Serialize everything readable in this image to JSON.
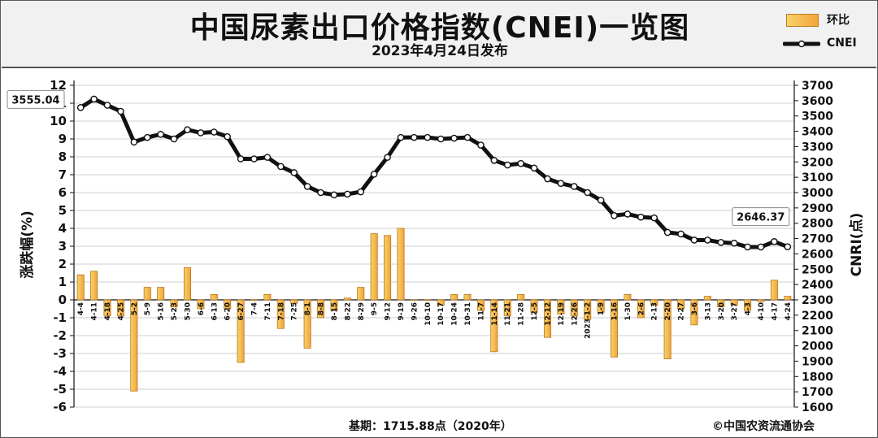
{
  "header": {
    "title": "中国尿素出口价格指数(CNEI)一览图",
    "subtitle": "2023年4月24日发布"
  },
  "legend": {
    "bar_label": "环比",
    "line_label": "CNEI"
  },
  "footer": {
    "base": "基期：1715.88点（2020年）",
    "copyright": "©中国农资流通协会"
  },
  "colors": {
    "bar_fill_light": "#f7d46a",
    "bar_fill_dark": "#f2a33a",
    "bar_stroke": "#b8741c",
    "line": "#111111",
    "marker_fill": "#ffffff",
    "grid": "#cfcfcf",
    "plot_bg": "#ffffff"
  },
  "chart_data": {
    "type": "bar+line",
    "categories": [
      "4-4",
      "4-11",
      "4-18",
      "4-25",
      "5-2",
      "5-9",
      "5-16",
      "5-23",
      "5-30",
      "6-6",
      "6-13",
      "6-20",
      "6-27",
      "7-4",
      "7-11",
      "7-18",
      "7-25",
      "8-1",
      "8-8",
      "8-15",
      "8-22",
      "8-29",
      "9-5",
      "9-12",
      "9-19",
      "9-26",
      "10-10",
      "10-17",
      "10-24",
      "10-31",
      "11-7",
      "11-14",
      "11-21",
      "11-28",
      "12-5",
      "12-12",
      "12-19",
      "12-26",
      "2023-1-2",
      "1-9",
      "1-16",
      "1-30",
      "2-6",
      "2-13",
      "2-20",
      "2-27",
      "3-6",
      "3-13",
      "3-20",
      "3-27",
      "4-3",
      "4-10",
      "4-17",
      "4-24"
    ],
    "series": [
      {
        "name": "环比",
        "type": "bar",
        "axis": "left",
        "values": [
          1.4,
          1.6,
          -0.9,
          -0.9,
          -5.1,
          0.7,
          0.7,
          -0.4,
          1.8,
          -0.5,
          0.3,
          -0.5,
          -3.5,
          0.0,
          0.3,
          -1.6,
          -0.2,
          -2.7,
          -1.0,
          -0.6,
          0.1,
          0.7,
          3.7,
          3.6,
          4.0,
          0.0,
          0.0,
          -0.3,
          0.3,
          0.3,
          -0.6,
          -2.9,
          -0.9,
          0.3,
          -0.7,
          -2.1,
          -0.8,
          -0.9,
          -1.1,
          -0.7,
          -3.2,
          0.3,
          -1.0,
          -0.3,
          -3.3,
          -0.5,
          -1.4,
          0.2,
          -0.4,
          -0.3,
          -0.6,
          -0.1,
          1.1,
          0.2
        ]
      },
      {
        "name": "CNEI",
        "type": "line",
        "axis": "right",
        "values": [
          3555.04,
          3610,
          3570,
          3530,
          3330,
          3360,
          3380,
          3350,
          3410,
          3390,
          3395,
          3365,
          3220,
          3220,
          3230,
          3170,
          3130,
          3040,
          3000,
          2985,
          2990,
          3005,
          3120,
          3230,
          3360,
          3360,
          3360,
          3350,
          3355,
          3360,
          3310,
          3210,
          3180,
          3190,
          3160,
          3090,
          3060,
          3040,
          3000,
          2950,
          2850,
          2860,
          2840,
          2835,
          2740,
          2730,
          2690,
          2690,
          2675,
          2670,
          2645,
          2645,
          2680,
          2646.37
        ]
      }
    ],
    "y_left": {
      "label": "涨跌幅(%)",
      "min": -6,
      "max": 12,
      "ticks": [
        12,
        11,
        10,
        9,
        8,
        7,
        6,
        5,
        4,
        3,
        2,
        1,
        0,
        -1,
        -2,
        -3,
        -4,
        -5,
        -6
      ]
    },
    "y_right": {
      "label": "CNRI(点)",
      "min": 1600,
      "max": 3700,
      "ticks": [
        3700,
        3600,
        3500,
        3400,
        3300,
        3200,
        3100,
        3000,
        2900,
        2800,
        2700,
        2600,
        2500,
        2400,
        2300,
        2200,
        2100,
        2000,
        1900,
        1800,
        1700,
        1600
      ]
    },
    "callouts": [
      {
        "label": "3555.04",
        "index": 0
      },
      {
        "label": "2646.37",
        "index": 53
      }
    ],
    "grid": true,
    "legend_position": "top-right"
  }
}
